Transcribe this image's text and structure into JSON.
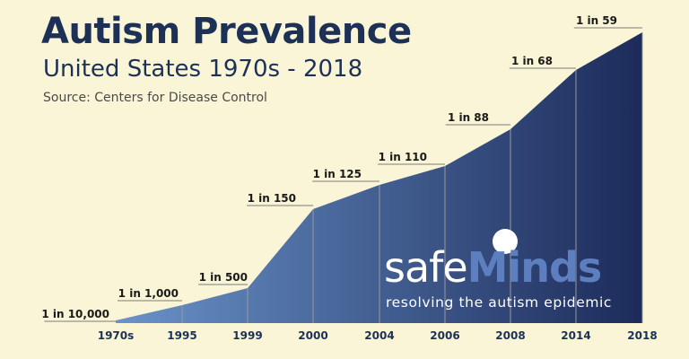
{
  "header": {
    "title": "Autism Prevalence",
    "subtitle": "United States 1970s - 2018",
    "source": "Source: Centers for Disease Control"
  },
  "logo": {
    "word_part1": "safe",
    "word_part2": "Minds",
    "tagline": "resolving the autism epidemic"
  },
  "colors": {
    "background": "#faf5d6",
    "title": "#1d3157",
    "area_light": "#6a93c9",
    "area_dark": "#1c2b5a",
    "guide_lines": "#9a9a9a",
    "logo_accent": "#5d7fc0"
  },
  "chart_data": {
    "type": "area",
    "title": "Autism Prevalence",
    "subtitle": "United States 1970s - 2018",
    "categories": [
      "1970s",
      "1995",
      "1999",
      "2000",
      "2004",
      "2006",
      "2008",
      "2014",
      "2018"
    ],
    "labels": [
      "1 in 10,000",
      "1 in 1,000",
      "1 in 500",
      "1 in 150",
      "1 in 125",
      "1 in 110",
      "1 in 88",
      "1 in 68",
      "1 in 59"
    ],
    "values_per_10000": [
      1,
      10,
      20,
      66.7,
      80,
      90.9,
      113.6,
      147.1,
      169.5
    ],
    "x_axis": "categorical, unevenly spaced years",
    "y_axis": "not shown",
    "grid": false,
    "legend": "none"
  }
}
